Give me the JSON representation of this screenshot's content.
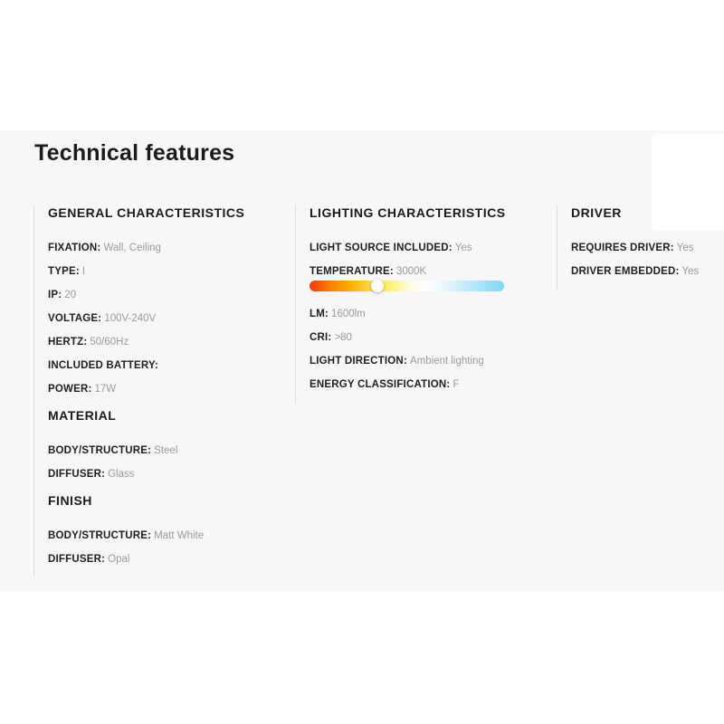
{
  "page": {
    "title": "Technical features"
  },
  "colors": {
    "band_background": "#f7f7f8",
    "label_text": "#1f1f21",
    "value_text": "#9b9b9e",
    "divider": "#dcdce0"
  },
  "sections": {
    "general": {
      "header": "GENERAL CHARACTERISTICS",
      "items": [
        {
          "label": "FIXATION:",
          "value": "Wall, Ceiling"
        },
        {
          "label": "TYPE:",
          "value": "I"
        },
        {
          "label": "IP:",
          "value": "20"
        },
        {
          "label": "VOLTAGE:",
          "value": "100V-240V"
        },
        {
          "label": "HERTZ:",
          "value": "50/60Hz"
        },
        {
          "label": "INCLUDED BATTERY:",
          "value": ""
        },
        {
          "label": "POWER:",
          "value": "17W"
        }
      ]
    },
    "material": {
      "header": "MATERIAL",
      "items": [
        {
          "label": "BODY/STRUCTURE:",
          "value": "Steel"
        },
        {
          "label": "DIFFUSER:",
          "value": "Glass"
        }
      ]
    },
    "finish": {
      "header": "FINISH",
      "items": [
        {
          "label": "BODY/STRUCTURE:",
          "value": "Matt White"
        },
        {
          "label": "DIFFUSER:",
          "value": "Opal"
        }
      ]
    },
    "lighting": {
      "header": "LIGHTING CHARACTERISTICS",
      "items_before_slider": [
        {
          "label": "LIGHT SOURCE INCLUDED:",
          "value": "Yes"
        },
        {
          "label": "TEMPERATURE:",
          "value": "3000K"
        }
      ],
      "slider": {
        "value_kelvin": "3000K",
        "value_percent": 35,
        "knob_color": "#ffffff",
        "gradient": [
          "#f43713 0%",
          "#fd7d00 10%",
          "#ffb300 22%",
          "#ffd94f 32%",
          "#fff176 42%",
          "#fffde7 52%",
          "#ffffff 60%",
          "#e4f7fd 70%",
          "#b3e7f9 85%",
          "#7fd6f6 100%"
        ]
      },
      "items_after_slider": [
        {
          "label": "LM:",
          "value": "1600lm"
        },
        {
          "label": "CRI:",
          "value": ">80"
        },
        {
          "label": "LIGHT DIRECTION:",
          "value": "Ambient lighting"
        },
        {
          "label": "ENERGY CLASSIFICATION:",
          "value": "F"
        }
      ]
    },
    "driver": {
      "header": "DRIVER",
      "items": [
        {
          "label": "REQUIRES DRIVER:",
          "value": "Yes"
        },
        {
          "label": "DRIVER EMBEDDED:",
          "value": "Yes"
        }
      ]
    }
  }
}
